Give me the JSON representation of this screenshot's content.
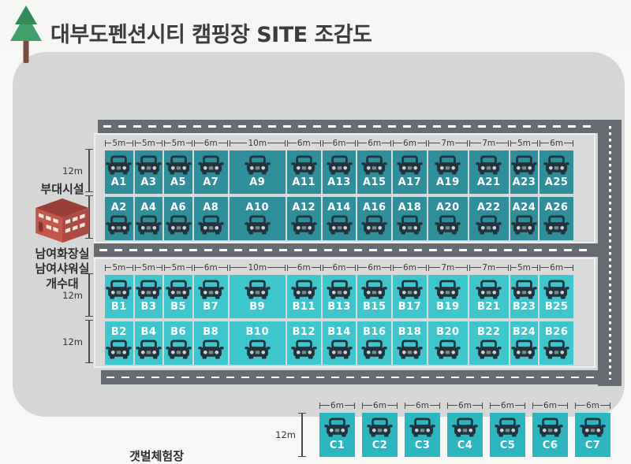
{
  "header": {
    "title": "대부도펜션시티 캠핑장 SITE 조감도"
  },
  "legend": {
    "facility_title": "부대시설",
    "facility_items": [
      "남여화장실",
      "남여샤워실",
      "개수대"
    ],
    "mudflat_label": "갯벌체험장"
  },
  "colors": {
    "section_a": "#2e8e99",
    "section_b": "#3ec6cd",
    "section_c": "#2cb6bf",
    "road": "#666b71",
    "panel": "#d6d6d6",
    "car_icon": "#22333e",
    "tree_green": "#41a06b",
    "building_red": "#c2574e"
  },
  "sections": {
    "A": {
      "height_label": "12m",
      "width_labels": [
        "5m",
        "5m",
        "5m",
        "6m",
        "10m",
        "6m",
        "6m",
        "6m",
        "6m",
        "7m",
        "7m",
        "5m",
        "6m"
      ],
      "widths_m": [
        5,
        5,
        5,
        6,
        10,
        6,
        6,
        6,
        6,
        7,
        7,
        5,
        6
      ],
      "row1": [
        "A1",
        "A3",
        "A5",
        "A7",
        "A9",
        "A11",
        "A13",
        "A15",
        "A17",
        "A19",
        "A21",
        "A23",
        "A25"
      ],
      "row2": [
        "A2",
        "A4",
        "A6",
        "A8",
        "A10",
        "A12",
        "A14",
        "A16",
        "A18",
        "A20",
        "A22",
        "A24",
        "A26"
      ]
    },
    "B": {
      "height_label": "12m",
      "width_labels": [
        "5m",
        "5m",
        "5m",
        "6m",
        "10m",
        "6m",
        "6m",
        "6m",
        "6m",
        "7m",
        "7m",
        "5m",
        "6m"
      ],
      "widths_m": [
        5,
        5,
        5,
        6,
        10,
        6,
        6,
        6,
        6,
        7,
        7,
        5,
        6
      ],
      "row1": [
        "B1",
        "B3",
        "B5",
        "B7",
        "B9",
        "B11",
        "B13",
        "B15",
        "B17",
        "B19",
        "B21",
        "B23",
        "B25"
      ],
      "row2": [
        "B2",
        "B4",
        "B6",
        "B8",
        "B10",
        "B12",
        "B14",
        "B16",
        "B18",
        "B20",
        "B22",
        "B24",
        "B26"
      ]
    },
    "C": {
      "height_label": "12m",
      "width_labels": [
        "6m",
        "6m",
        "6m",
        "6m",
        "6m",
        "6m",
        "6m"
      ],
      "widths_m": [
        6,
        6,
        6,
        6,
        6,
        6,
        6
      ],
      "row1": [
        "C1",
        "C2",
        "C3",
        "C4",
        "C5",
        "C6",
        "C7"
      ]
    }
  }
}
